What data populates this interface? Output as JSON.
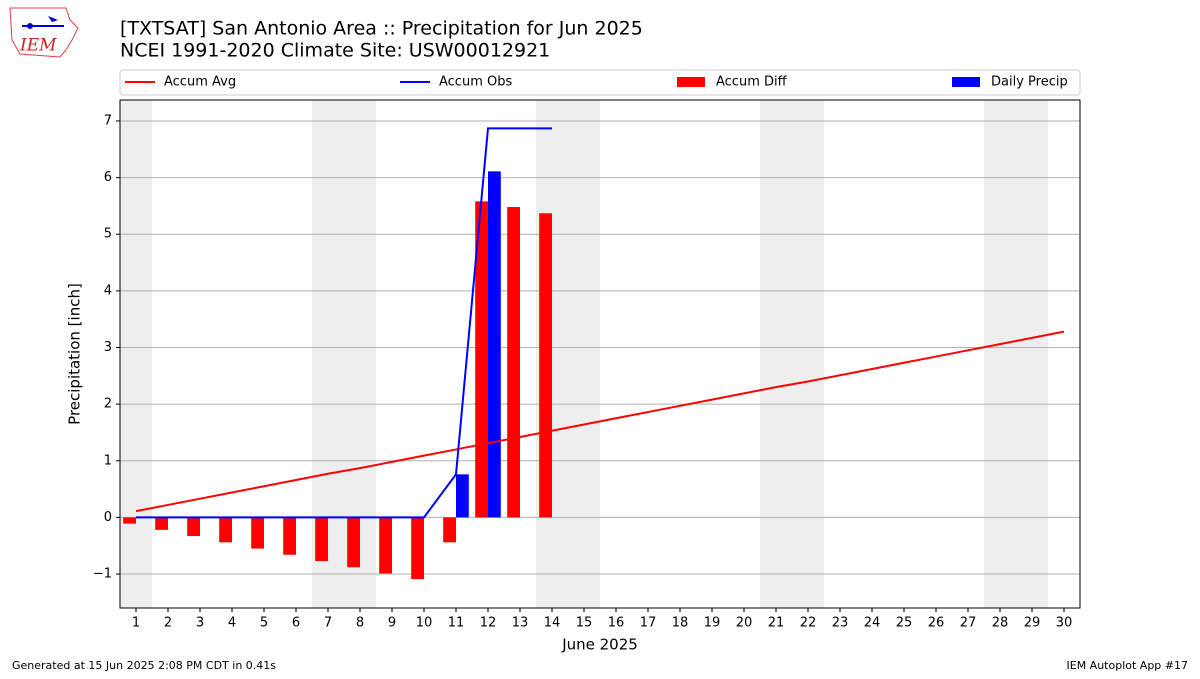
{
  "logo_text": "IEM",
  "footer_left": "Generated at 15 Jun 2025 2:08 PM CDT in 0.41s",
  "footer_right": "IEM Autoplot App #17",
  "chart_data": {
    "type": "combo",
    "title": "[TXTSAT] San Antonio Area :: Precipitation for Jun 2025",
    "subtitle": "NCEI 1991-2020 Climate Site: USW00012921",
    "xlabel": "June 2025",
    "ylabel": "Precipitation [inch]",
    "x": [
      1,
      2,
      3,
      4,
      5,
      6,
      7,
      8,
      9,
      10,
      11,
      12,
      13,
      14,
      15,
      16,
      17,
      18,
      19,
      20,
      21,
      22,
      23,
      24,
      25,
      26,
      27,
      28,
      29,
      30
    ],
    "xlim": [
      0.5,
      30.5
    ],
    "xticks": [
      1,
      2,
      3,
      4,
      5,
      6,
      7,
      8,
      9,
      10,
      11,
      12,
      13,
      14,
      15,
      16,
      17,
      18,
      19,
      20,
      21,
      22,
      23,
      24,
      25,
      26,
      27,
      28,
      29,
      30
    ],
    "ylim": [
      -1.6,
      7.37
    ],
    "yticks": [
      {
        "value": -1,
        "label": "−1"
      },
      0,
      1,
      2,
      3,
      4,
      5,
      6,
      7
    ],
    "grid": true,
    "shaded_spans": [
      [
        0.5,
        1.5
      ],
      [
        6.5,
        8.5
      ],
      [
        13.5,
        15.5
      ],
      [
        20.5,
        22.5
      ],
      [
        27.5,
        29.5
      ]
    ],
    "shade_color": "#eeeeee",
    "series": [
      {
        "name": "Accum Avg",
        "type": "line",
        "color": "#ff0000",
        "values": [
          0.11,
          0.22,
          0.33,
          0.44,
          0.55,
          0.66,
          0.77,
          0.87,
          0.98,
          1.09,
          1.2,
          1.31,
          1.42,
          1.53,
          1.64,
          1.75,
          1.86,
          1.97,
          2.08,
          2.19,
          2.3,
          2.4,
          2.51,
          2.62,
          2.73,
          2.84,
          2.95,
          3.06,
          3.17,
          3.28
        ]
      },
      {
        "name": "Accum Obs",
        "type": "line",
        "color": "#0000ff",
        "values": [
          0,
          0,
          0,
          0,
          0,
          0,
          0,
          0,
          0,
          0,
          0.76,
          6.87,
          6.87,
          6.87,
          null,
          null,
          null,
          null,
          null,
          null,
          null,
          null,
          null,
          null,
          null,
          null,
          null,
          null,
          null,
          null
        ]
      },
      {
        "name": "Accum Diff",
        "type": "bar",
        "color": "#ff0000",
        "values": [
          -0.11,
          -0.22,
          -0.33,
          -0.44,
          -0.55,
          -0.66,
          -0.77,
          -0.88,
          -0.99,
          -1.09,
          -0.44,
          5.58,
          5.48,
          5.37,
          null,
          null,
          null,
          null,
          null,
          null,
          null,
          null,
          null,
          null,
          null,
          null,
          null,
          null,
          null,
          null
        ]
      },
      {
        "name": "Daily Precip",
        "type": "bar",
        "color": "#0000ff",
        "values": [
          0,
          0,
          0,
          0,
          0,
          0,
          0,
          0,
          0,
          0,
          0.76,
          6.11,
          0,
          0,
          null,
          null,
          null,
          null,
          null,
          null,
          null,
          null,
          null,
          null,
          null,
          null,
          null,
          null,
          null,
          null
        ]
      }
    ]
  }
}
